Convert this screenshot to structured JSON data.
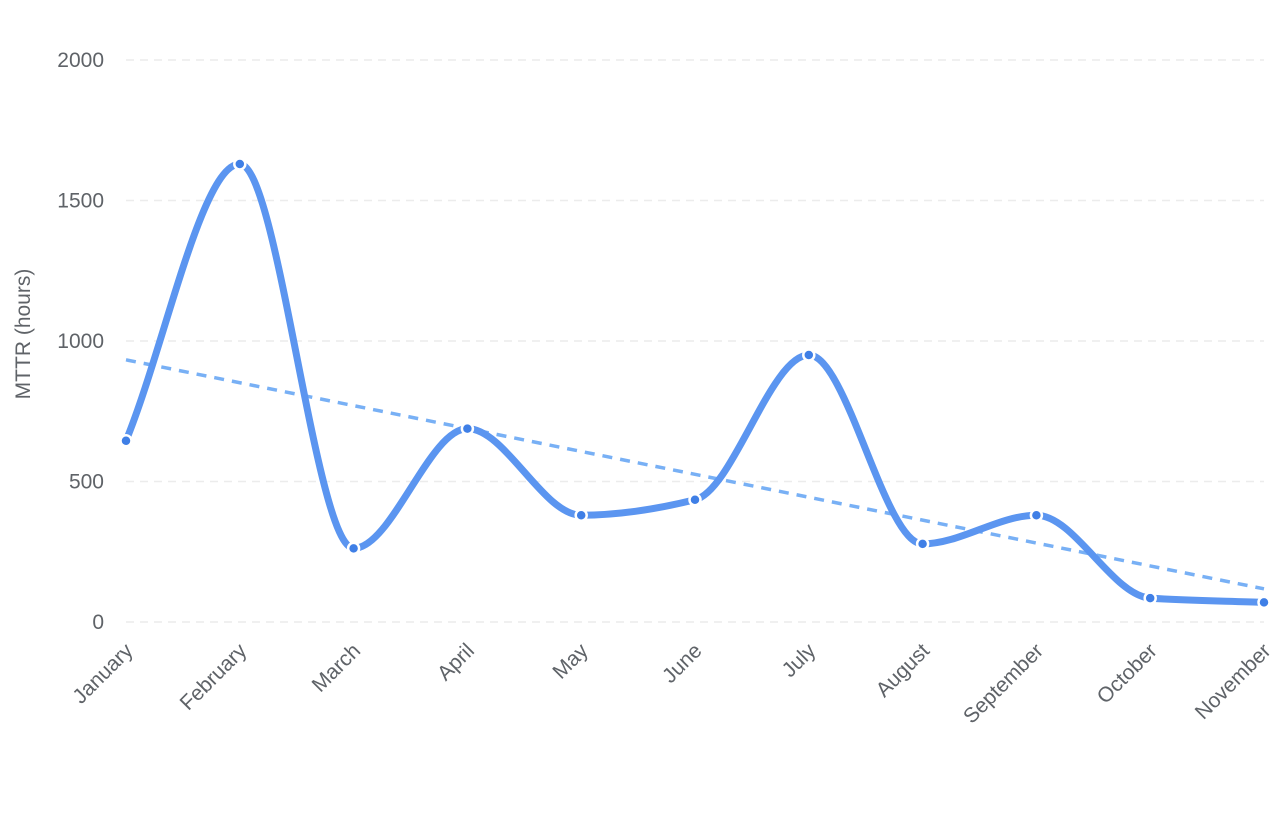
{
  "chart_data": {
    "type": "line",
    "ylabel": "MTTR (hours)",
    "xlabel": "",
    "categories": [
      "January",
      "February",
      "March",
      "April",
      "May",
      "June",
      "July",
      "August",
      "September",
      "October",
      "November"
    ],
    "series": [
      {
        "values": [
          645,
          1630,
          262,
          688,
          380,
          435,
          950,
          278,
          380,
          85,
          70
        ],
        "color": "#5b95f0",
        "smooth": true,
        "markers": true
      }
    ],
    "trendline": {
      "style": "dashed",
      "color": "#78b0f5",
      "start": 933,
      "end": 118
    },
    "ylim": [
      0,
      2000
    ],
    "yticks": [
      0,
      500,
      1000,
      1500,
      2000
    ],
    "grid": true,
    "legend": "none"
  }
}
